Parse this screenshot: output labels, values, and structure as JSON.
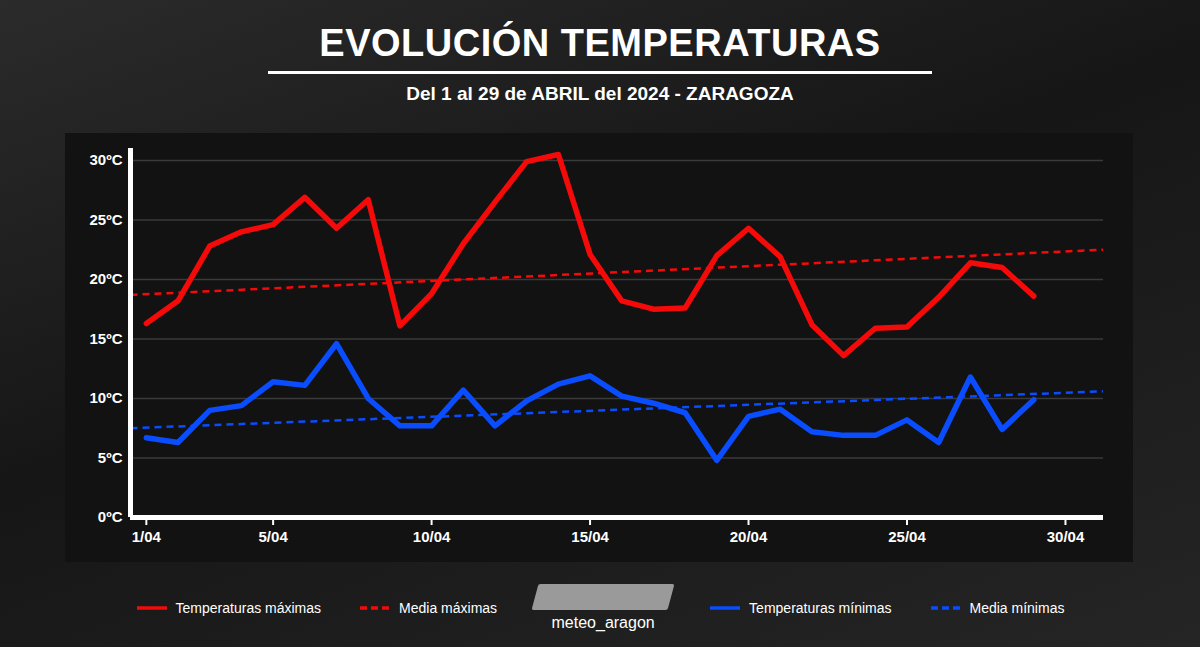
{
  "chart_data": {
    "type": "line",
    "title": "EVOLUCIÓN TEMPERATURAS",
    "subtitle": "Del 1 al 29 de ABRIL del 2024 - ZARAGOZA",
    "source": "meteo_aragon",
    "x": [
      1,
      2,
      3,
      4,
      5,
      6,
      7,
      8,
      9,
      10,
      11,
      12,
      13,
      14,
      15,
      16,
      17,
      18,
      19,
      20,
      21,
      22,
      23,
      24,
      25,
      26,
      27,
      28,
      29
    ],
    "xlim": [
      0.5,
      31.2
    ],
    "xticks": [
      {
        "value": 1,
        "label": "1/04"
      },
      {
        "value": 5,
        "label": "5/04"
      },
      {
        "value": 10,
        "label": "10/04"
      },
      {
        "value": 15,
        "label": "15/04"
      },
      {
        "value": 20,
        "label": "20/04"
      },
      {
        "value": 25,
        "label": "25/04"
      },
      {
        "value": 30,
        "label": "30/04"
      }
    ],
    "ylim": [
      0,
      31
    ],
    "yticks": [
      {
        "value": 0,
        "label": "0ºC"
      },
      {
        "value": 5,
        "label": "5ºC"
      },
      {
        "value": 10,
        "label": "10ºC"
      },
      {
        "value": 15,
        "label": "15ºC"
      },
      {
        "value": 20,
        "label": "20ºC"
      },
      {
        "value": 25,
        "label": "25ºC"
      },
      {
        "value": 30,
        "label": "30ºC"
      }
    ],
    "grid": true,
    "legend": "bottom",
    "series": [
      {
        "name": "Temperaturas máximas",
        "color": "#f50a0a",
        "line_style": "solid",
        "values": [
          16.3,
          18.2,
          22.8,
          24,
          24.6,
          26.9,
          24.3,
          26.7,
          16.1,
          18.8,
          23,
          26.5,
          29.9,
          30.5,
          22.1,
          18.2,
          17.5,
          17.6,
          22,
          24.3,
          21.9,
          16.2,
          13.6,
          15.9,
          16,
          18.5,
          21.4,
          21,
          18.6
        ]
      },
      {
        "name": "Media máximas",
        "color": "#f50a0a",
        "line_style": "dashed",
        "x": [
          0.5,
          31.2
        ],
        "values": [
          18.7,
          22.5
        ]
      },
      {
        "name": "Temperaturas mínimas",
        "color": "#0a4dff",
        "line_style": "solid",
        "values": [
          6.7,
          6.3,
          9,
          9.4,
          11.4,
          11.1,
          14.6,
          10,
          7.7,
          7.7,
          10.7,
          7.7,
          9.8,
          11.2,
          11.9,
          10.2,
          9.6,
          8.8,
          4.8,
          8.5,
          9.1,
          7.2,
          6.9,
          6.9,
          8.2,
          6.3,
          11.8,
          7.4,
          9.9
        ]
      },
      {
        "name": "Media mínimas",
        "color": "#0a4dff",
        "line_style": "dashed",
        "x": [
          0.5,
          31.2
        ],
        "values": [
          7.5,
          10.6
        ]
      }
    ]
  }
}
